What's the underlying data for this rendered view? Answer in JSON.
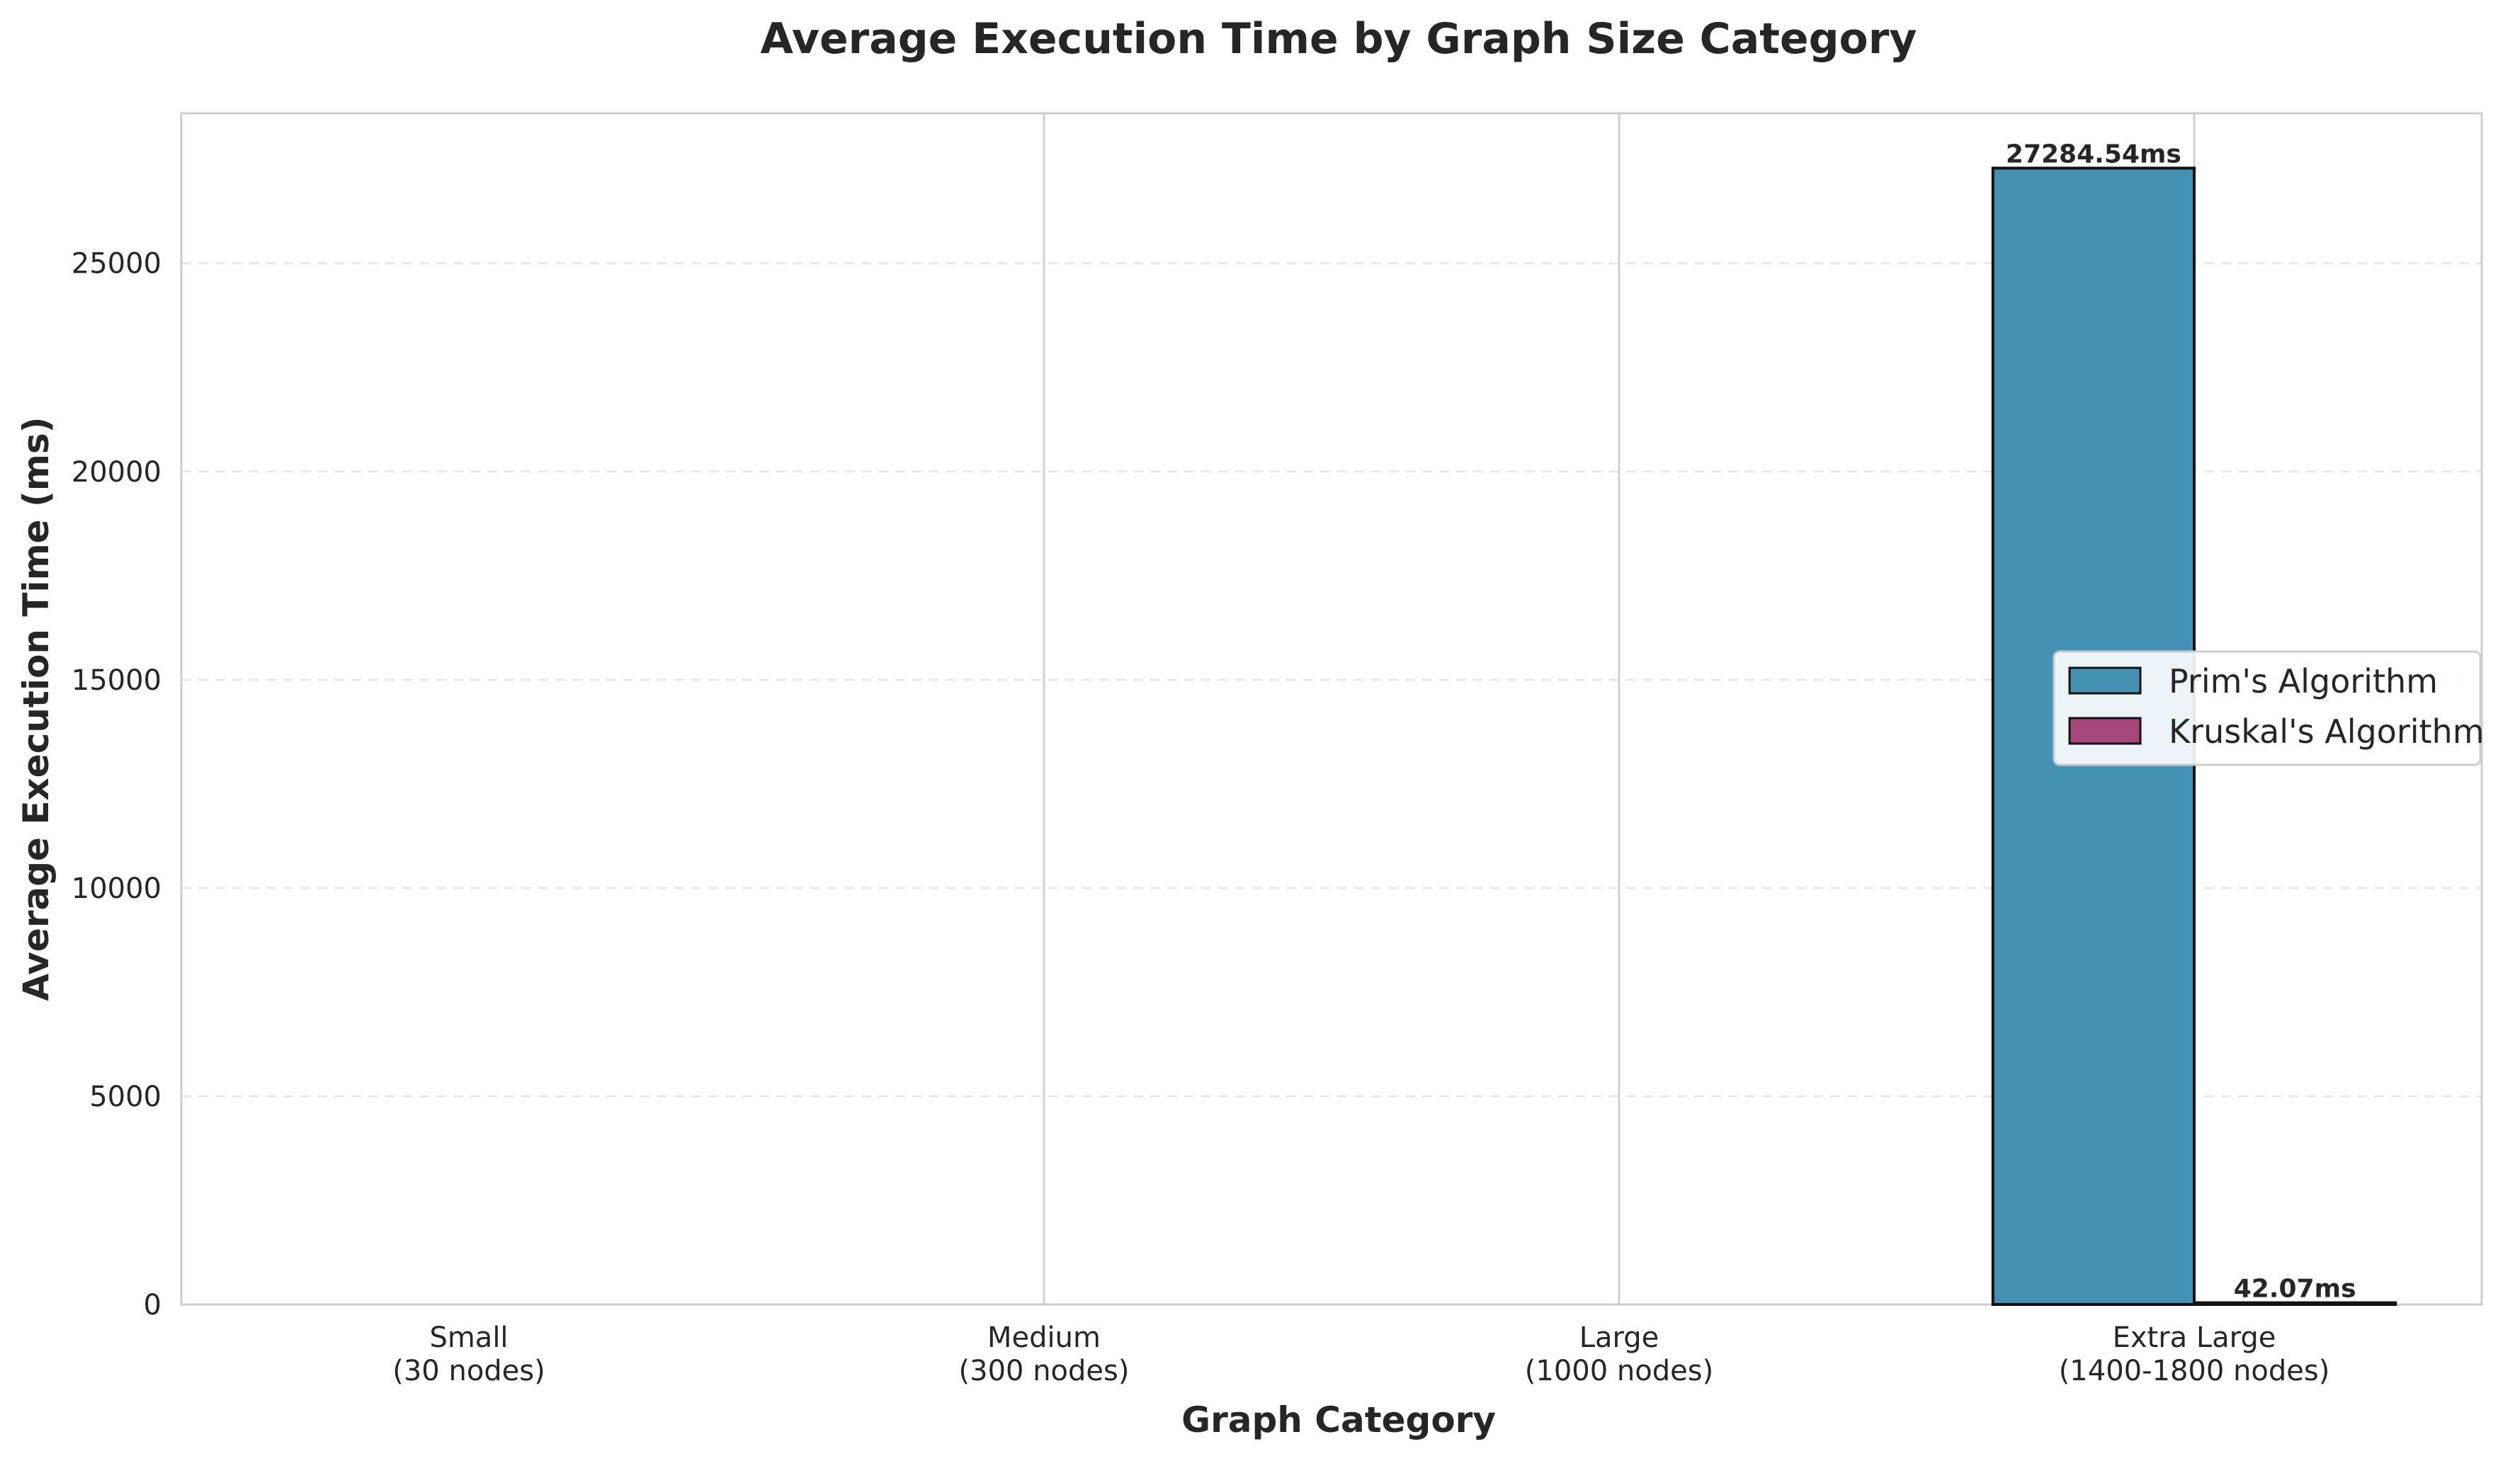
{
  "chart_data": {
    "type": "bar",
    "title": "Average Execution Time by Graph Size Category",
    "xlabel": "Graph Category",
    "ylabel": "Average Execution Time (ms)",
    "categories": [
      [
        "Small",
        "(30 nodes)"
      ],
      [
        "Medium",
        "(300 nodes)"
      ],
      [
        "Large",
        "(1000 nodes)"
      ],
      [
        "Extra Large",
        "(1400-1800 nodes)"
      ]
    ],
    "series": [
      {
        "name": "Prim's Algorithm",
        "color": "#4392b3",
        "values": [
          null,
          null,
          null,
          27284.54
        ],
        "labels": [
          null,
          null,
          null,
          "27284.54ms"
        ]
      },
      {
        "name": "Kruskal's Algorithm",
        "color": "#a8467e",
        "values": [
          null,
          null,
          null,
          42.07
        ],
        "labels": [
          null,
          null,
          null,
          "42.07ms"
        ]
      }
    ],
    "ylim": [
      0,
      28600
    ],
    "yticks": [
      0,
      5000,
      10000,
      15000,
      20000,
      25000
    ],
    "grid": true,
    "legend_position": "center-right"
  }
}
